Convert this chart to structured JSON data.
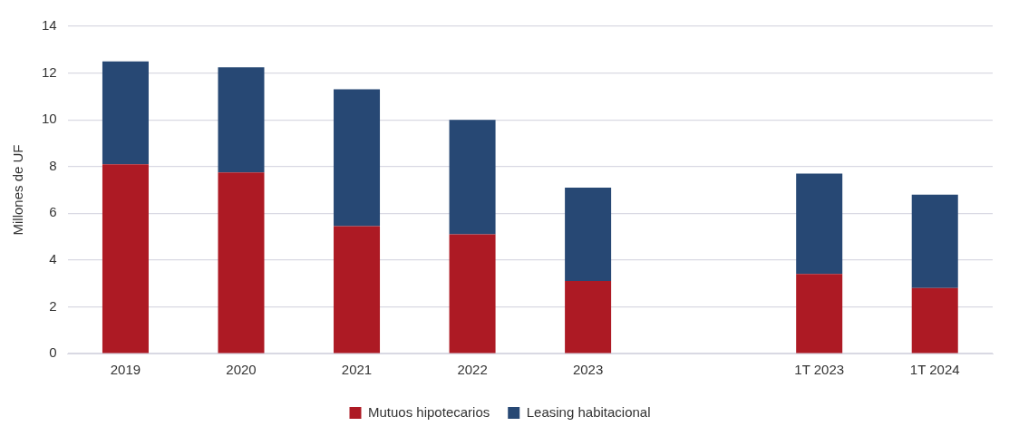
{
  "chart_data": {
    "type": "bar",
    "ylabel": "Millones de UF",
    "categories": [
      "2019",
      "2020",
      "2021",
      "2022",
      "2023",
      null,
      "1T 2023",
      "1T 2024"
    ],
    "series": [
      {
        "name": "Mutuos hipotecarios",
        "color": "#ad1a24",
        "values": [
          8.1,
          7.75,
          5.45,
          5.1,
          3.1,
          null,
          3.4,
          2.8
        ]
      },
      {
        "name": "Leasing habitacional",
        "color": "#274874",
        "values": [
          4.4,
          4.5,
          5.85,
          4.9,
          4.0,
          null,
          4.3,
          4.0
        ]
      }
    ],
    "stacked": true,
    "ylim": [
      0,
      14
    ],
    "yticks": [
      0,
      2,
      4,
      6,
      8,
      10,
      12,
      14
    ],
    "grid": "y",
    "legend": "bottom"
  }
}
